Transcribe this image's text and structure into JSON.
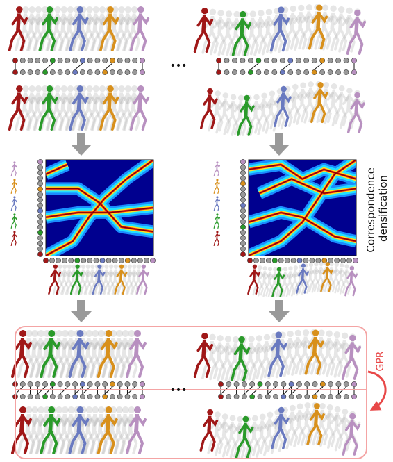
{
  "side_label": [
    "Correspondence",
    "densification"
  ],
  "loop_label": "GPR",
  "ellipsis_top": "•••",
  "ellipsis_bottom": "•••"
}
